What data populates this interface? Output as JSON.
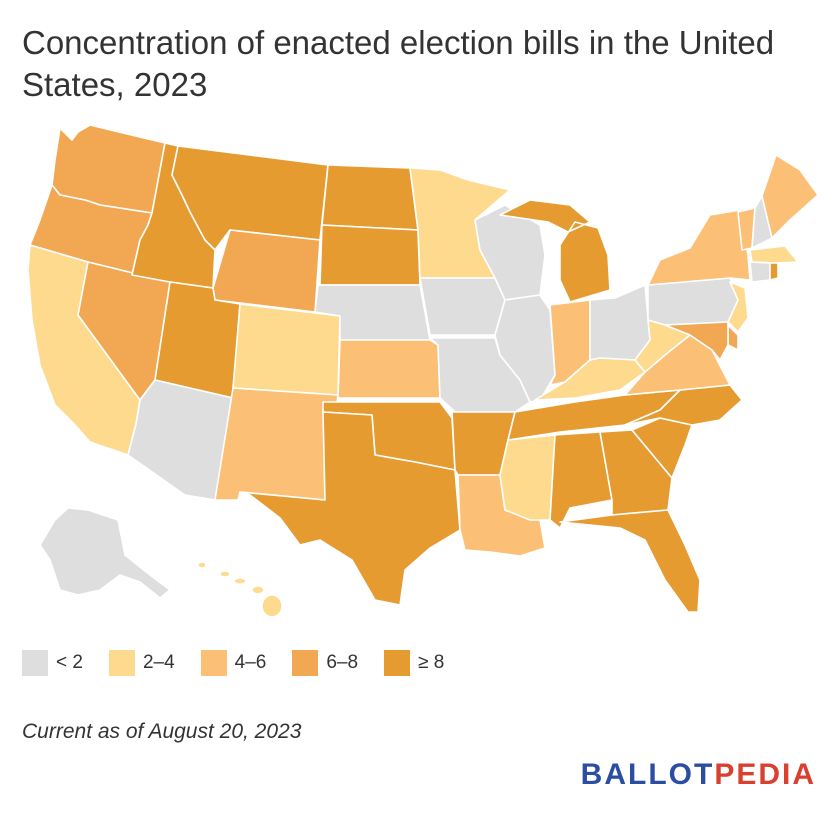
{
  "title": "Concentration of enacted election bills in the United States, 2023",
  "footnote": "Current as of August 20, 2023",
  "brand": {
    "part1": "BALLOT",
    "part2": "PEDIA"
  },
  "colors": {
    "lt2": "#dedede",
    "2-4": "#fdda8e",
    "4-6": "#fcbf76",
    "6-8": "#f2a853",
    "ge8": "#e59b30",
    "brand_blue": "#2b4ea2",
    "brand_red": "#d8412f"
  },
  "legend": [
    {
      "label": "< 2",
      "color_key": "lt2"
    },
    {
      "label": "2–4",
      "color_key": "2-4"
    },
    {
      "label": "4–6",
      "color_key": "4-6"
    },
    {
      "label": "6–8",
      "color_key": "6-8"
    },
    {
      "label": "≥ 8",
      "color_key": "ge8"
    }
  ],
  "states": {
    "WA": "6-8",
    "OR": "6-8",
    "CA": "2-4",
    "NV": "6-8",
    "ID": "ge8",
    "MT": "ge8",
    "WY": "6-8",
    "UT": "ge8",
    "AZ": "lt2",
    "CO": "2-4",
    "NM": "4-6",
    "ND": "ge8",
    "SD": "ge8",
    "NE": "lt2",
    "KS": "4-6",
    "OK": "ge8",
    "TX": "ge8",
    "MN": "2-4",
    "IA": "lt2",
    "MO": "lt2",
    "AR": "ge8",
    "LA": "4-6",
    "WI": "lt2",
    "IL": "lt2",
    "MI": "ge8",
    "IN": "4-6",
    "OH": "lt2",
    "KY": "2-4",
    "TN": "ge8",
    "MS": "2-4",
    "AL": "ge8",
    "GA": "ge8",
    "FL": "ge8",
    "SC": "ge8",
    "NC": "ge8",
    "VA": "4-6",
    "WV": "2-4",
    "PA": "lt2",
    "NY": "4-6",
    "VT": "4-6",
    "NH": "lt2",
    "ME": "4-6",
    "MA": "2-4",
    "RI": "ge8",
    "CT": "lt2",
    "NJ": "2-4",
    "DE": "6-8",
    "MD": "6-8",
    "AK": "lt2",
    "HI": "2-4"
  }
}
